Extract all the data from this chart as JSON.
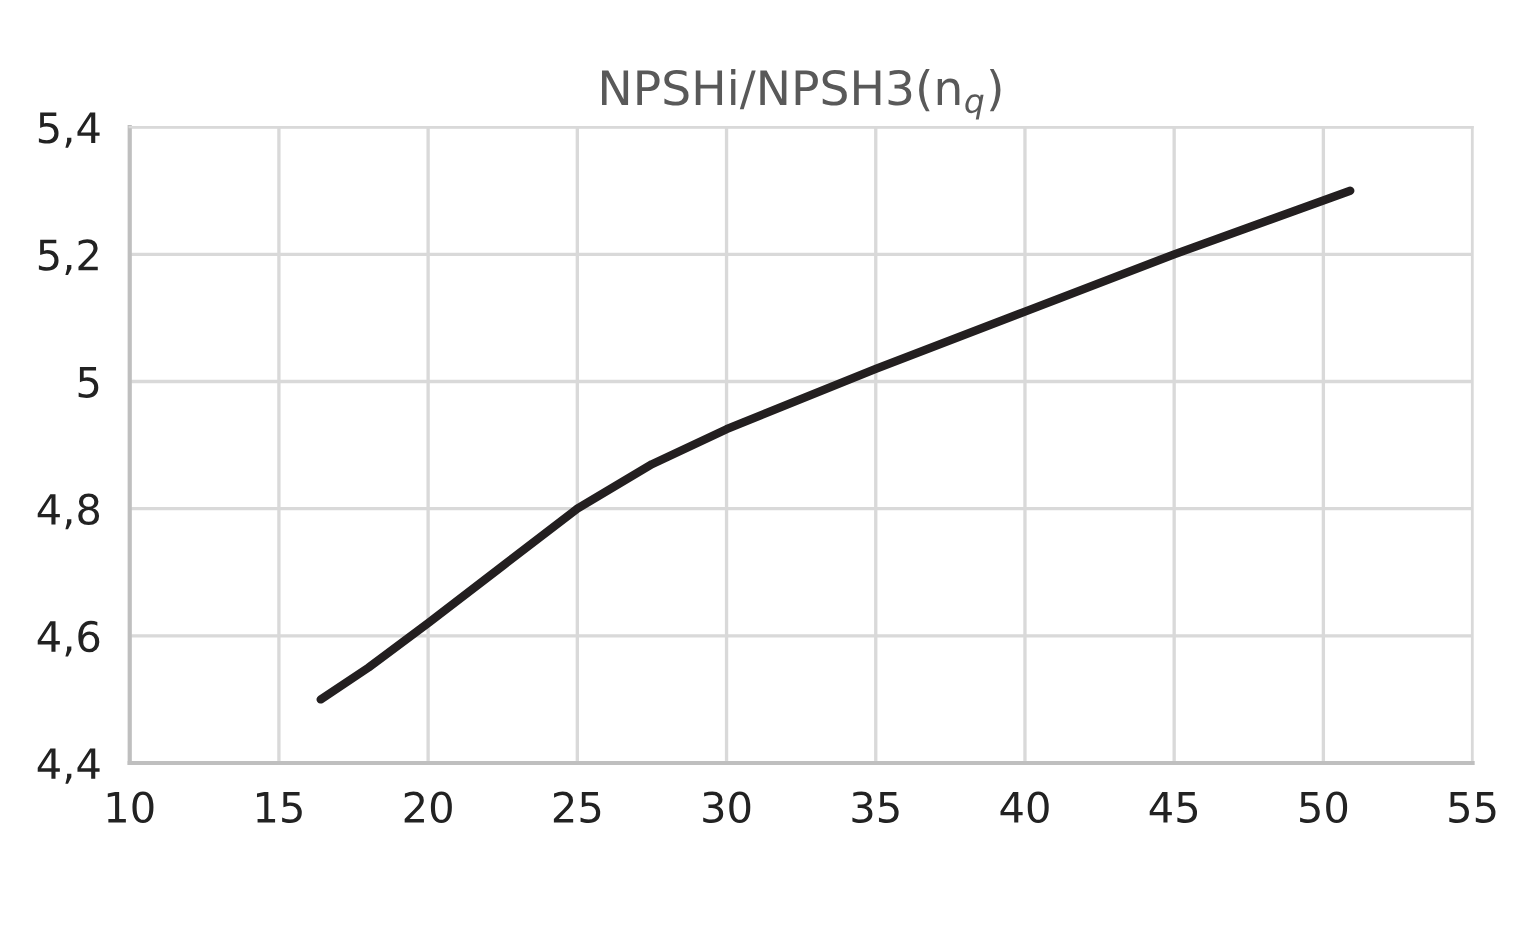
{
  "chart_data": {
    "type": "line",
    "title": "NPSHi/NPSH3(n$_{q}$)",
    "x": [
      16.4,
      18,
      20,
      22.5,
      25,
      27.5,
      30,
      35,
      40,
      45,
      50.9
    ],
    "series": [
      {
        "color": "#231f20",
        "values": [
          4.5,
          4.55,
          4.62,
          4.71,
          4.8,
          4.87,
          4.925,
          5.02,
          5.11,
          5.2,
          5.3
        ]
      }
    ],
    "xlim": [
      10,
      55
    ],
    "xticks": [
      10,
      15,
      20,
      25,
      30,
      35,
      40,
      45,
      50,
      55
    ],
    "ylim": [
      4.4,
      5.4
    ],
    "yticks": [
      {
        "value": 4.4,
        "label": "4,4"
      },
      {
        "value": 4.6,
        "label": "4,6"
      },
      {
        "value": 4.8,
        "label": "4,8"
      },
      {
        "value": 5.0,
        "label": "5"
      },
      {
        "value": 5.2,
        "label": "5,2"
      },
      {
        "value": 5.4,
        "label": "5,4"
      }
    ],
    "grid": true,
    "legend": false,
    "marker": "none",
    "line_style": "solid"
  }
}
